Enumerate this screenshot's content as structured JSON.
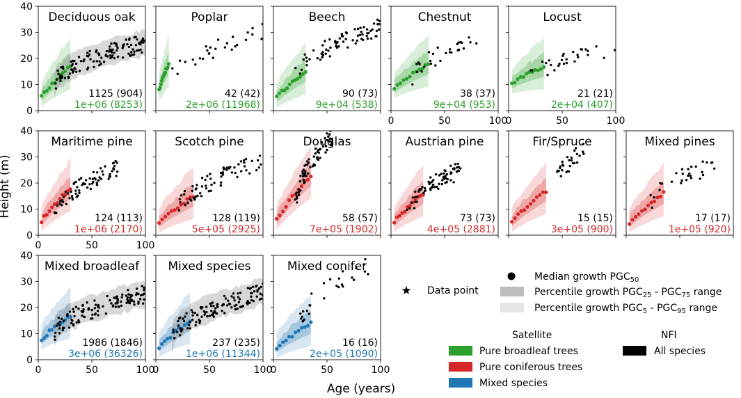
{
  "chart_data": {
    "type": "scatter",
    "figure_title": "",
    "ylabel": "Height (m)",
    "xlabel": "Age (years)",
    "xlim": [
      0,
      100
    ],
    "ylim": [
      0,
      40
    ],
    "xticks": [
      "0",
      "50",
      "100"
    ],
    "yticks": [
      "0",
      "10",
      "20",
      "30",
      "40"
    ],
    "colors": {
      "broadleaf": "#2ca02c",
      "coniferous": "#d62728",
      "mixed": "#1f77b4",
      "nfi": "#000000"
    },
    "panels": [
      {
        "name": "Deciduous oak",
        "group": "broadleaf",
        "nfi_count": "1125 (904)",
        "sat_count": "1e+06 (8253)",
        "nfi_range": [
          15,
          100
        ],
        "nfi_height": [
          10,
          26
        ],
        "sat_max_age": 30,
        "sat_height": [
          3,
          17
        ],
        "nfi_density": "dense"
      },
      {
        "name": "Poplar",
        "group": "broadleaf",
        "nfi_count": "42 (42)",
        "sat_count": "2e+06 (11968)",
        "nfi_range": [
          10,
          100
        ],
        "nfi_height": [
          10,
          30
        ],
        "sat_max_age": 12,
        "sat_height": [
          3,
          18
        ],
        "nfi_density": "sparse"
      },
      {
        "name": "Beech",
        "group": "broadleaf",
        "nfi_count": "90 (73)",
        "sat_count": "9e+04 (538)",
        "nfi_range": [
          20,
          100
        ],
        "nfi_height": [
          12,
          32
        ],
        "sat_max_age": 30,
        "sat_height": [
          3,
          15
        ],
        "nfi_density": "medium"
      },
      {
        "name": "Chestnut",
        "group": "broadleaf",
        "nfi_count": "38 (37)",
        "sat_count": "9e+04 (953)",
        "nfi_range": [
          20,
          80
        ],
        "nfi_height": [
          12,
          27
        ],
        "sat_max_age": 35,
        "sat_height": [
          7,
          18
        ],
        "nfi_density": "sparse"
      },
      {
        "name": "Locust",
        "group": "broadleaf",
        "nfi_count": "21 (21)",
        "sat_count": "2e+04 (407)",
        "nfi_range": [
          20,
          100
        ],
        "nfi_height": [
          12,
          24
        ],
        "sat_max_age": 33,
        "sat_height": [
          9,
          17
        ],
        "nfi_density": "sparse"
      },
      {
        "name": "Maritime pine",
        "group": "coniferous",
        "nfi_count": "124 (113)",
        "sat_count": "1e+06 (2170)",
        "nfi_range": [
          15,
          75
        ],
        "nfi_height": [
          8,
          26
        ],
        "sat_max_age": 30,
        "sat_height": [
          3,
          18
        ],
        "nfi_density": "medium"
      },
      {
        "name": "Scotch pine",
        "group": "coniferous",
        "nfi_count": "128 (119)",
        "sat_count": "5e+05 (2925)",
        "nfi_range": [
          20,
          100
        ],
        "nfi_height": [
          9,
          28
        ],
        "sat_max_age": 35,
        "sat_height": [
          3,
          15
        ],
        "nfi_density": "medium"
      },
      {
        "name": "Douglas",
        "group": "coniferous",
        "nfi_count": "58 (57)",
        "sat_count": "7e+05 (1902)",
        "nfi_range": [
          20,
          55
        ],
        "nfi_height": [
          10,
          38
        ],
        "sat_max_age": 35,
        "sat_height": [
          3,
          23
        ],
        "nfi_density": "medium"
      },
      {
        "name": "Austrian pine",
        "group": "coniferous",
        "nfi_count": "73 (73)",
        "sat_count": "4e+05 (2881)",
        "nfi_range": [
          15,
          65
        ],
        "nfi_height": [
          8,
          25
        ],
        "sat_max_age": 30,
        "sat_height": [
          3,
          16
        ],
        "nfi_density": "medium"
      },
      {
        "name": "Fir/Spruce",
        "group": "coniferous",
        "nfi_count": "15 (15)",
        "sat_count": "3e+05 (900)",
        "nfi_range": [
          45,
          70
        ],
        "nfi_height": [
          20,
          32
        ],
        "sat_max_age": 35,
        "sat_height": [
          3,
          17
        ],
        "nfi_density": "sparse"
      },
      {
        "name": "Mixed pines",
        "group": "coniferous",
        "nfi_count": "17 (17)",
        "sat_count": "1e+05 (920)",
        "nfi_range": [
          20,
          95
        ],
        "nfi_height": [
          10,
          29
        ],
        "sat_max_age": 35,
        "sat_height": [
          3,
          16
        ],
        "nfi_density": "sparse"
      },
      {
        "name": "Mixed broadleaf",
        "group": "mixed",
        "nfi_count": "1986 (1846)",
        "sat_count": "3e+06 (36326)",
        "nfi_range": [
          15,
          100
        ],
        "nfi_height": [
          10,
          25
        ],
        "sat_max_age": 30,
        "sat_height": [
          6,
          17
        ],
        "nfi_density": "dense"
      },
      {
        "name": "Mixed species",
        "group": "mixed",
        "nfi_count": "237 (235)",
        "sat_count": "1e+06 (11344)",
        "nfi_range": [
          15,
          100
        ],
        "nfi_height": [
          8,
          26
        ],
        "sat_max_age": 32,
        "sat_height": [
          3,
          15
        ],
        "nfi_density": "dense"
      },
      {
        "name": "Mixed conifer",
        "group": "mixed",
        "nfi_count": "16 (16)",
        "sat_count": "2e+05 (1090)",
        "nfi_range": [
          25,
          90
        ],
        "nfi_height": [
          14,
          36
        ],
        "sat_max_age": 35,
        "sat_height": [
          3,
          14
        ],
        "nfi_density": "sparse"
      }
    ],
    "legend": {
      "median_label": "Median growth PGC",
      "median_sub": "50",
      "iqr_label_a": "Percentile growth PGC",
      "iqr_sub_a": "25",
      "iqr_label_b": " - PGC",
      "iqr_sub_b": "75",
      "iqr_label_c": " range",
      "outer_label_a": "Percentile growth PGC",
      "outer_sub_a": "5",
      "outer_label_b": " - PGC",
      "outer_sub_b": "95",
      "outer_label_c": " range",
      "datapoint_label": "Data point",
      "satellite_title": "Satellite",
      "nfi_title": "NFI",
      "broadleaf_label": "Pure broadleaf trees",
      "coniferous_label": "Pure coniferous trees",
      "mixed_label": "Mixed species",
      "nfi_label": "All species"
    }
  }
}
